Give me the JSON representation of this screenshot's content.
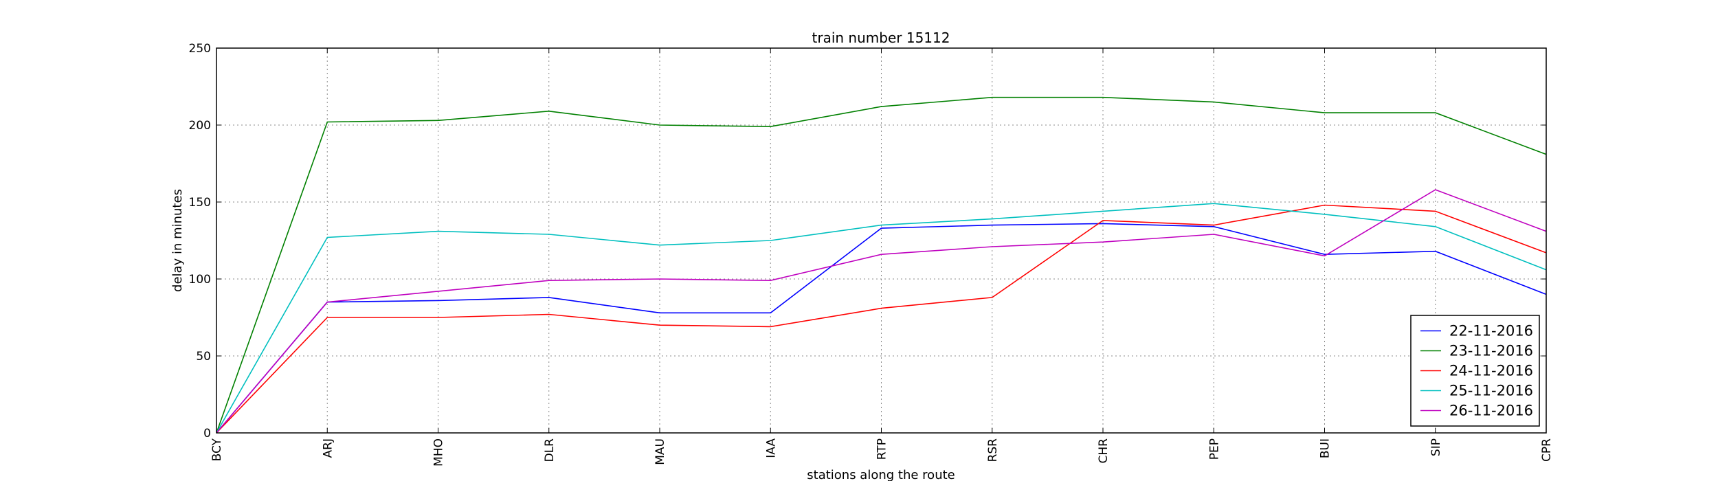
{
  "chart_data": {
    "type": "line",
    "title": "train number 15112",
    "xlabel": "stations along the route",
    "ylabel": "delay in minutes",
    "categories": [
      "BCY",
      "ARJ",
      "MHO",
      "DLR",
      "MAU",
      "IAA",
      "RTP",
      "RSR",
      "CHR",
      "PEP",
      "BUI",
      "SIP",
      "CPR"
    ],
    "ylim": [
      0,
      250
    ],
    "yticks": [
      0,
      50,
      100,
      150,
      200,
      250
    ],
    "grid": true,
    "legend_position": "bottom-right",
    "series": [
      {
        "name": "22-11-2016",
        "color": "#0000ff",
        "values": [
          0,
          85,
          86,
          88,
          78,
          78,
          133,
          135,
          136,
          134,
          116,
          118,
          90
        ]
      },
      {
        "name": "23-11-2016",
        "color": "#008000",
        "values": [
          0,
          202,
          203,
          209,
          200,
          199,
          212,
          218,
          218,
          215,
          208,
          208,
          181
        ]
      },
      {
        "name": "24-11-2016",
        "color": "#ff0000",
        "values": [
          0,
          75,
          75,
          77,
          70,
          69,
          81,
          88,
          138,
          135,
          148,
          144,
          117
        ]
      },
      {
        "name": "25-11-2016",
        "color": "#00bfbf",
        "values": [
          0,
          127,
          131,
          129,
          122,
          125,
          135,
          139,
          144,
          149,
          142,
          134,
          106
        ]
      },
      {
        "name": "26-11-2016",
        "color": "#bf00bf",
        "values": [
          0,
          85,
          92,
          99,
          100,
          99,
          116,
          121,
          124,
          129,
          115,
          158,
          131
        ]
      }
    ]
  }
}
